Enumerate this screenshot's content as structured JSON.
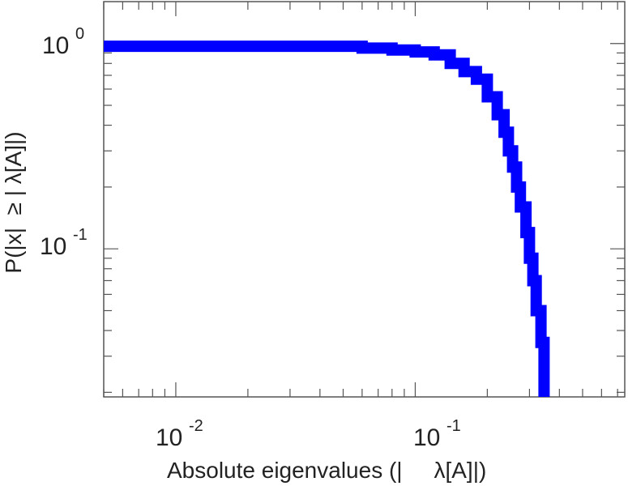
{
  "chart_data": {
    "type": "line",
    "title": "",
    "xlabel": "Absolute eigenvalues (|     λ[A]|)",
    "ylabel": "P(|x|  ≥ | λ[A]|)",
    "xscale": "log",
    "yscale": "log",
    "xlim": [
      0.005,
      0.75
    ],
    "ylim": [
      0.019,
      1.6
    ],
    "grid": false,
    "legend": "none",
    "line_color": "#0000ff",
    "x_ticks": [
      {
        "base": "10",
        "exp": "-2"
      },
      {
        "base": "10",
        "exp": "-1"
      }
    ],
    "y_ticks": [
      {
        "base": "10",
        "exp": "0"
      },
      {
        "base": "10",
        "exp": "-1"
      }
    ],
    "series": [
      {
        "style": "step",
        "points": [
          [
            0.005,
            0.97
          ],
          [
            0.06,
            0.97
          ],
          [
            0.06,
            0.95
          ],
          [
            0.08,
            0.95
          ],
          [
            0.08,
            0.93
          ],
          [
            0.1,
            0.93
          ],
          [
            0.1,
            0.91
          ],
          [
            0.12,
            0.91
          ],
          [
            0.12,
            0.88
          ],
          [
            0.14,
            0.88
          ],
          [
            0.14,
            0.8
          ],
          [
            0.16,
            0.8
          ],
          [
            0.16,
            0.73
          ],
          [
            0.18,
            0.73
          ],
          [
            0.18,
            0.67
          ],
          [
            0.2,
            0.67
          ],
          [
            0.2,
            0.55
          ],
          [
            0.22,
            0.55
          ],
          [
            0.22,
            0.45
          ],
          [
            0.235,
            0.45
          ],
          [
            0.235,
            0.37
          ],
          [
            0.245,
            0.37
          ],
          [
            0.245,
            0.3
          ],
          [
            0.255,
            0.3
          ],
          [
            0.255,
            0.25
          ],
          [
            0.265,
            0.25
          ],
          [
            0.265,
            0.2
          ],
          [
            0.275,
            0.2
          ],
          [
            0.275,
            0.16
          ],
          [
            0.29,
            0.16
          ],
          [
            0.29,
            0.12
          ],
          [
            0.3,
            0.12
          ],
          [
            0.3,
            0.09
          ],
          [
            0.31,
            0.09
          ],
          [
            0.31,
            0.07
          ],
          [
            0.32,
            0.07
          ],
          [
            0.32,
            0.05
          ],
          [
            0.335,
            0.05
          ],
          [
            0.335,
            0.035
          ],
          [
            0.345,
            0.035
          ],
          [
            0.345,
            0.019
          ]
        ]
      }
    ]
  }
}
